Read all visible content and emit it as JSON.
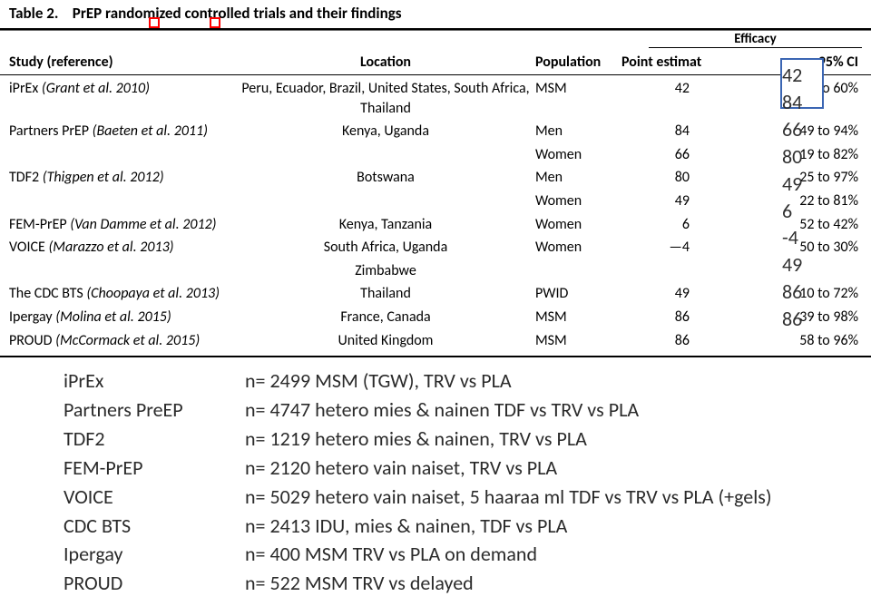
{
  "title": {
    "label": "Table 2.",
    "caption": "PrEP randomized controlled trials and their findings"
  },
  "super_head": {
    "efficacy": "Efficacy"
  },
  "head": {
    "study": "Study (reference)",
    "location": "Location",
    "population": "Population",
    "point": "Point estimat",
    "ci": "95% CI"
  },
  "rows": [
    {
      "study_name": "iPrEx",
      "study_cite": "(Grant et al. 2010)",
      "location": "Peru, Ecuador, Brazil, United States, South Africa, Thailand",
      "population": "MSM",
      "pe": "42",
      "ci": "18 to 60%"
    },
    {
      "study_name": "Partners PrEP",
      "study_cite": "(Baeten et al. 2011)",
      "location": "Kenya, Uganda",
      "population": "Men",
      "pe": "84",
      "ci": "49 to 94%"
    },
    {
      "study_name": "",
      "study_cite": "",
      "location": "",
      "population": "Women",
      "pe": "66",
      "ci": "19 to 82%"
    },
    {
      "study_name": "TDF2",
      "study_cite": "(Thigpen et al. 2012)",
      "location": "Botswana",
      "population": "Men",
      "pe": "80",
      "ci": "25 to 97%"
    },
    {
      "study_name": "",
      "study_cite": "",
      "location": "",
      "population": "Women",
      "pe": "49",
      "ci": "22 to 81%"
    },
    {
      "study_name": "FEM-PrEP",
      "study_cite": "(Van Damme et al. 2012)",
      "location": "Kenya, Tanzania",
      "population": "Women",
      "pe": "6",
      "ci": "52 to 42%"
    },
    {
      "study_name": "VOICE",
      "study_cite": "(Marazzo et al. 2013)",
      "location": "South Africa, Uganda",
      "population": "Women",
      "pe": "—4",
      "ci": "50 to 30%"
    },
    {
      "study_name": "",
      "study_cite": "",
      "location": "Zimbabwe",
      "population": "",
      "pe": "",
      "ci": ""
    },
    {
      "study_name": "The CDC BTS",
      "study_cite": "(Choopaya et al. 2013)",
      "location": "Thailand",
      "population": "PWID",
      "pe": "49",
      "ci": "10 to 72%"
    },
    {
      "study_name": "Ipergay",
      "study_cite": "(Molina et al. 2015)",
      "location": "France, Canada",
      "population": "MSM",
      "pe": "86",
      "ci": "39 to 98%"
    },
    {
      "study_name": "PROUD",
      "study_cite": "(McCormack et al. 2015)",
      "location": "United Kingdom",
      "population": "MSM",
      "pe": "86",
      "ci": "58 to 96%"
    }
  ],
  "overlay_values": [
    "42",
    "84",
    "66",
    "80",
    "49",
    "6",
    "-4",
    "49",
    "86",
    "86"
  ],
  "notes": [
    {
      "label": "iPrEx",
      "value": "n= 2499 MSM (TGW), TRV vs PLA"
    },
    {
      "label": "Partners PreEP",
      "value": "n= 4747 hetero mies & nainen  TDF vs TRV vs PLA"
    },
    {
      "label": "TDF2",
      "value": "n= 1219 hetero mies & nainen, TRV vs PLA"
    },
    {
      "label": "FEM-PrEP",
      "value": "n= 2120 hetero vain naiset, TRV vs PLA"
    },
    {
      "label": "VOICE",
      "value": "n= 5029 hetero vain naiset, 5 haaraa ml TDF vs TRV vs PLA (+gels)"
    },
    {
      "label": "CDC BTS",
      "value": "n= 2413 IDU, mies & nainen, TDF vs PLA"
    },
    {
      "label": "Ipergay",
      "value": "n= 400 MSM TRV vs PLA on demand"
    },
    {
      "label": "PROUD",
      "value": "n= 522 MSM TRV vs delayed"
    }
  ],
  "style": {
    "text_color": "#000000",
    "overlay_border": "#3b66b3",
    "underline_square": "#ff0000",
    "background": "#ffffff",
    "table_fontsize": 16,
    "title_fontsize": 17,
    "overlay_fontsize": 22,
    "notes_fontsize": 22
  }
}
